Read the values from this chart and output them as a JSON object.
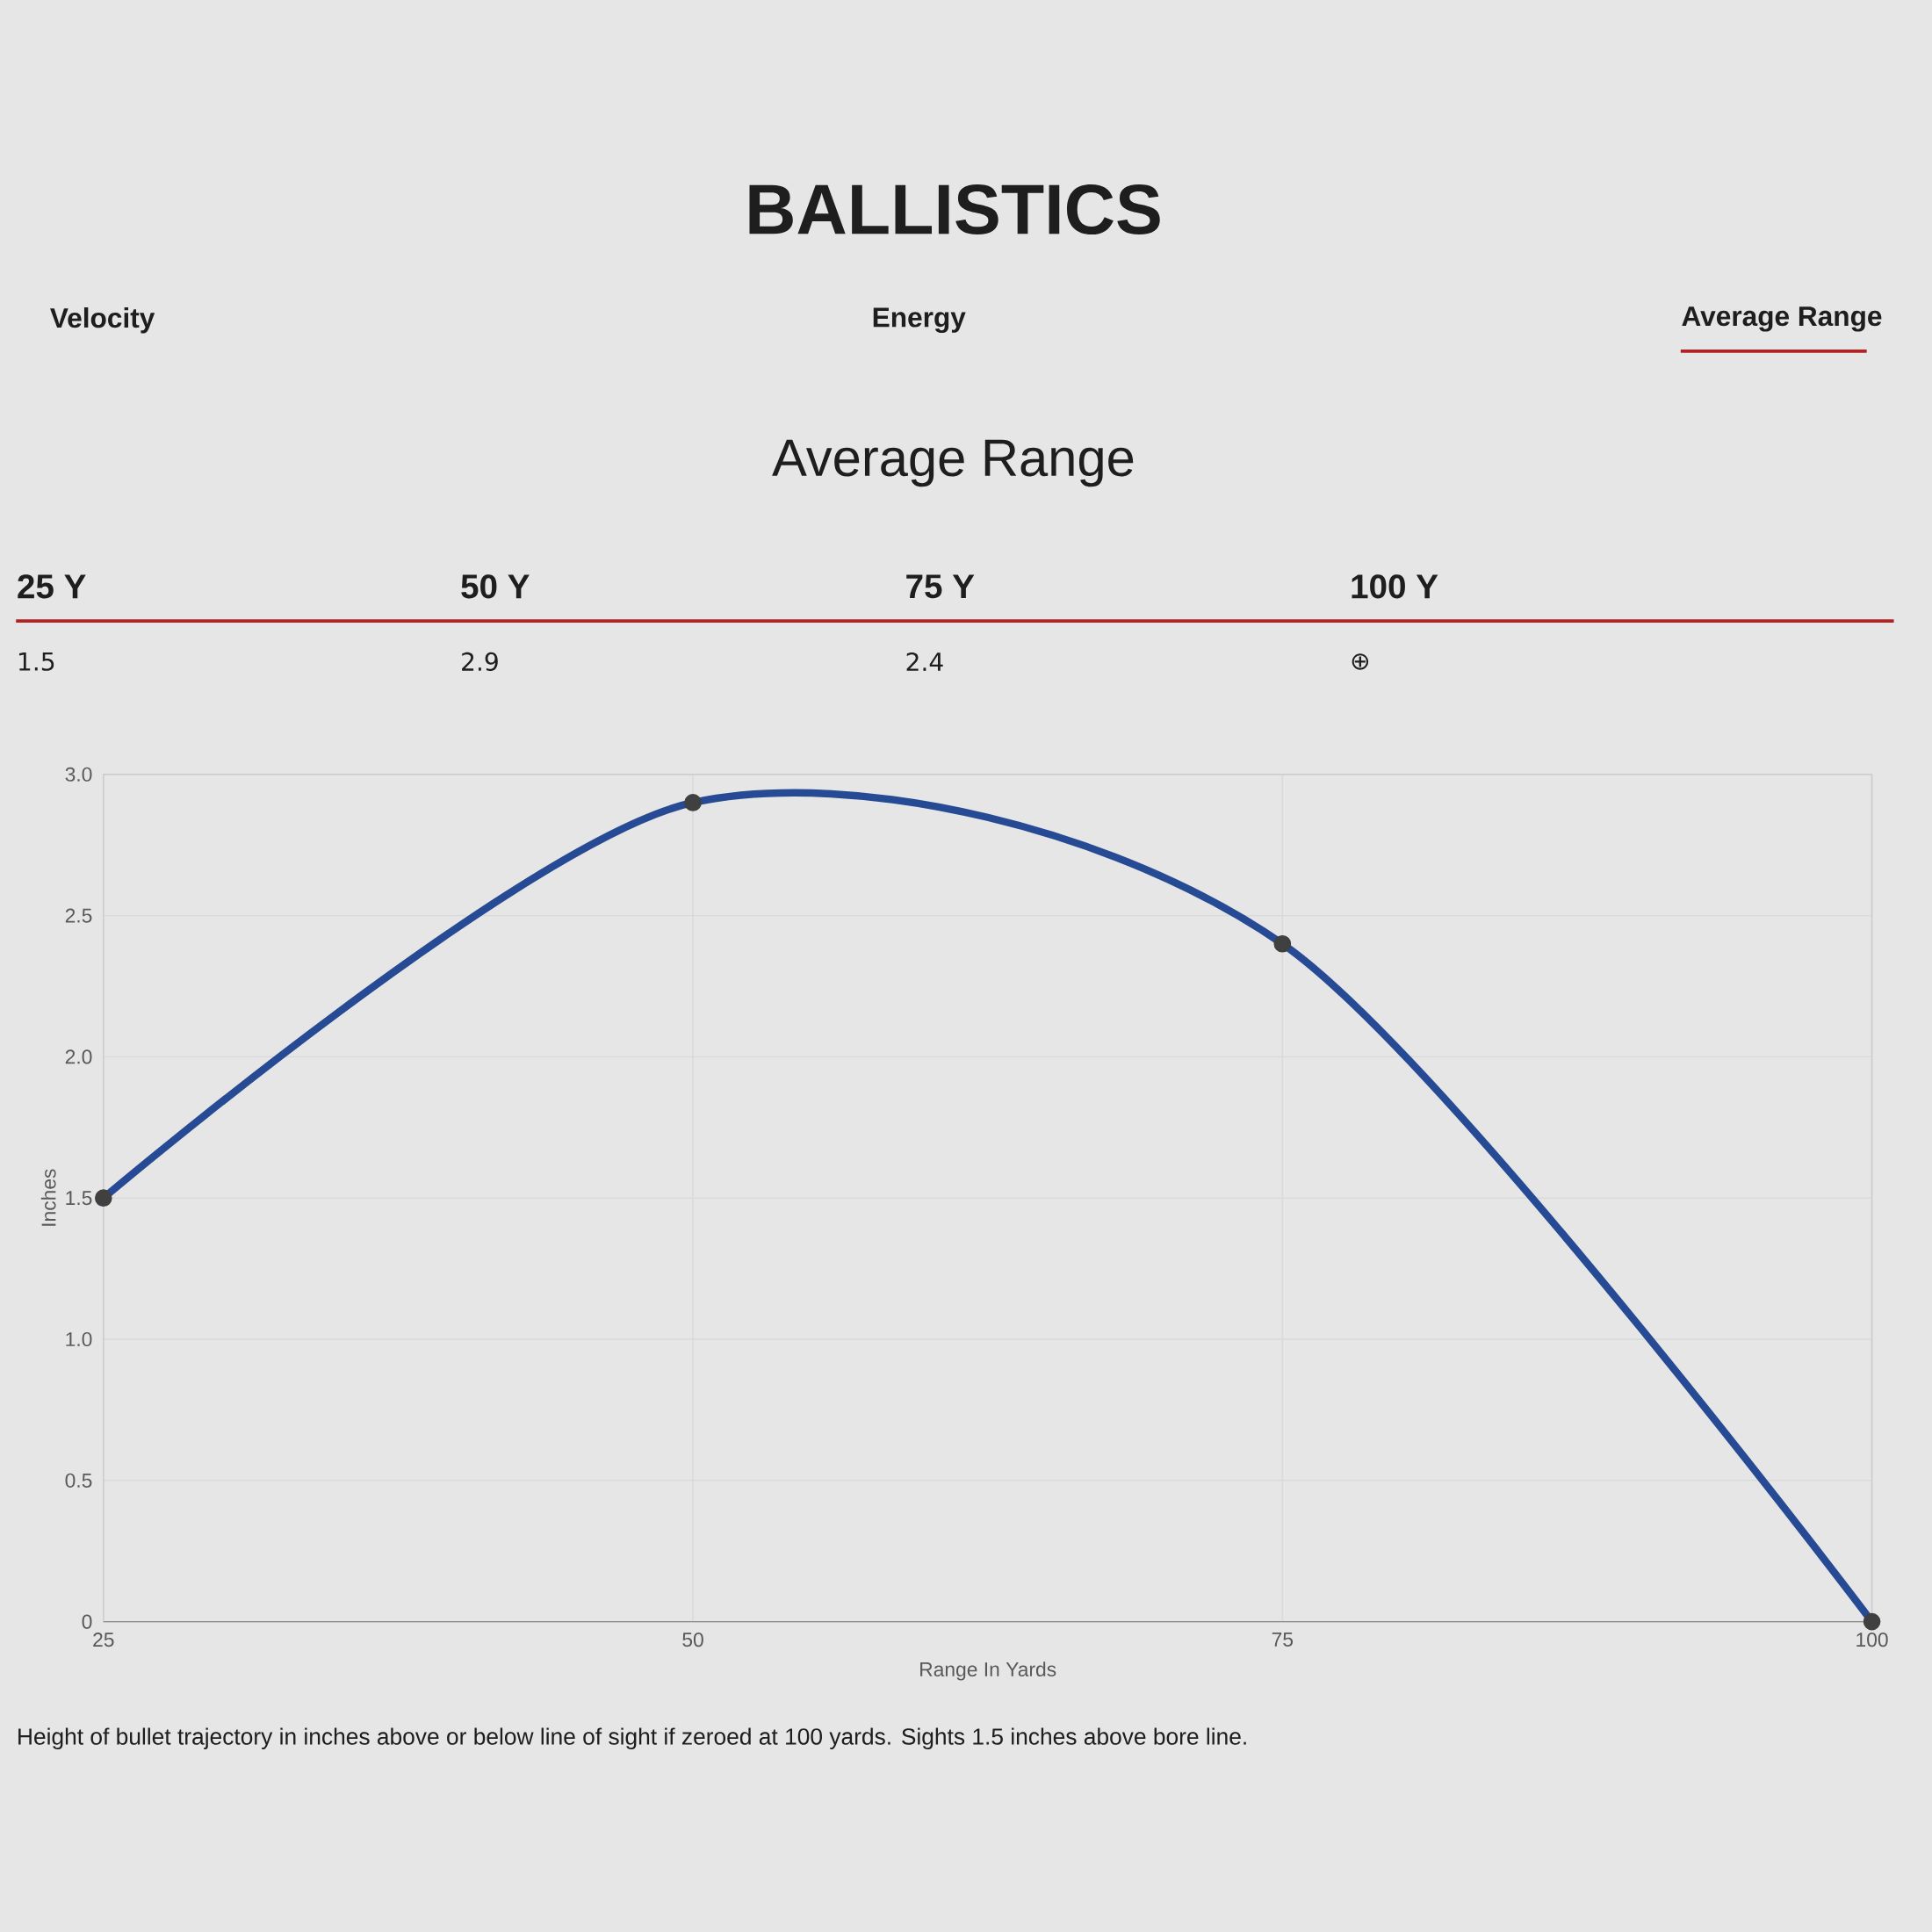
{
  "chart_data": {
    "type": "line",
    "title": "BALLISTICS",
    "subtitle": "Average Range",
    "annotations": [
      "Velocity",
      "Energy",
      "Average Range",
      "25 Y",
      "50 Y",
      "75 Y",
      "100 Y",
      "1.5",
      "2.9",
      "2.4",
      "⊕",
      "Height of bullet trajectory in inches above or below line of sight if zeroed at 100 yards. Sights 1.5 inches above bore line."
    ],
    "x": [
      25,
      50,
      75,
      100
    ],
    "series": [
      {
        "color": "#264a94",
        "values": [
          1.5,
          2.9,
          2.4,
          0
        ]
      }
    ],
    "xlabel": "Range In Yards",
    "ylabel": "Inches",
    "xlim": [
      25,
      100
    ],
    "xticks": [
      25,
      50,
      75,
      100
    ],
    "ylim": [
      0,
      3
    ],
    "yticks": [
      0,
      0.5,
      {
        "value": 1,
        "label": "1.0"
      },
      1.5,
      {
        "value": 2,
        "label": "2.0"
      },
      2.5,
      {
        "value": 3,
        "label": "3.0"
      }
    ],
    "grid": true,
    "marker": "circle",
    "line_style": "solid",
    "legend": false
  }
}
